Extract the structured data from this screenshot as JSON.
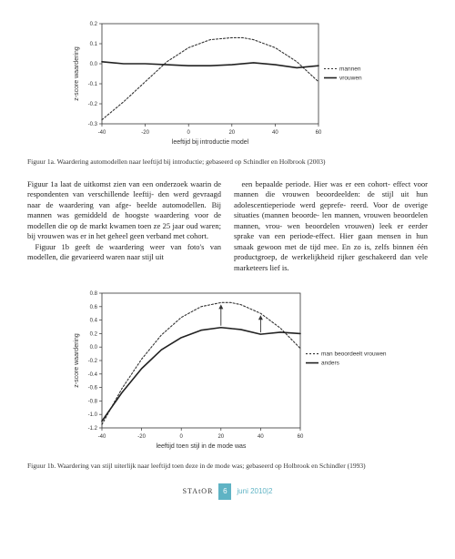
{
  "chart1": {
    "type": "line",
    "title": "",
    "xlabel": "leeftijd bij introductie model",
    "ylabel": "z-score waardering",
    "xlim": [
      -40,
      60
    ],
    "ylim": [
      -0.3,
      0.2
    ],
    "xtick_step": 20,
    "ytick_step": 0.1,
    "label_fontsize": 7,
    "tick_fontsize": 6,
    "background_color": "#ffffff",
    "axis_color": "#333333",
    "grid_on": false,
    "legend_position": "right",
    "series": [
      {
        "name": "mannen",
        "legend_label": "mannen",
        "color": "#333333",
        "dash": "2,2",
        "width": 1.1,
        "points": [
          {
            "x": -40,
            "y": -0.28
          },
          {
            "x": -30,
            "y": -0.19
          },
          {
            "x": -20,
            "y": -0.09
          },
          {
            "x": -10,
            "y": 0.01
          },
          {
            "x": 0,
            "y": 0.08
          },
          {
            "x": 10,
            "y": 0.12
          },
          {
            "x": 20,
            "y": 0.13
          },
          {
            "x": 25,
            "y": 0.13
          },
          {
            "x": 30,
            "y": 0.12
          },
          {
            "x": 40,
            "y": 0.08
          },
          {
            "x": 50,
            "y": 0.01
          },
          {
            "x": 60,
            "y": -0.09
          }
        ]
      },
      {
        "name": "vrouwen",
        "legend_label": "vrouwen",
        "color": "#222222",
        "dash": "none",
        "width": 1.6,
        "points": [
          {
            "x": -40,
            "y": 0.01
          },
          {
            "x": -30,
            "y": 0.0
          },
          {
            "x": -20,
            "y": 0.0
          },
          {
            "x": -10,
            "y": -0.005
          },
          {
            "x": 0,
            "y": -0.01
          },
          {
            "x": 10,
            "y": -0.01
          },
          {
            "x": 20,
            "y": -0.005
          },
          {
            "x": 30,
            "y": 0.005
          },
          {
            "x": 40,
            "y": -0.005
          },
          {
            "x": 50,
            "y": -0.02
          },
          {
            "x": 60,
            "y": -0.01
          }
        ]
      }
    ]
  },
  "caption1": "Figuur 1a. Waardering automodellen naar leeftijd bij introductie; gebaseerd op Schindler en Holbrook (2003)",
  "paragraph1": "Figuur 1a laat de uitkomst zien van een onderzoek waarin de respondenten van verschillende leeftij- den werd gevraagd naar de waardering van afge- beelde automodellen. Bij mannen was gemiddeld de hoogste waardering voor de modellen die op de markt kwamen toen ze 25 jaar oud waren; bij vrouwen was er in het geheel geen verband met cohort.",
  "paragraph2": "Figuur 1b geeft de waardering weer van foto's van modellen, die gevarieerd waren naar stijl uit",
  "paragraph3": "een bepaalde periode. Hier was er een cohort- effect voor mannen die vrouwen beoordeelden: de stijl uit hun adolescentieperiode werd geprefe- reerd. Voor de overige situaties (mannen beoorde- len mannen, vrouwen beoordelen mannen, vrou- wen beoordelen vrouwen) leek er eerder sprake van een periode-effect. Hier gaan mensen in hun smaak gewoon met de tijd mee. En zo is, zelfs binnen één productgroep, de werkelijkheid rijker geschakeerd dan vele marketeers lief is.",
  "chart2": {
    "type": "line",
    "title": "",
    "xlabel": "leeftijd toen stijl in de mode was",
    "ylabel": "z-score waardering",
    "xlim": [
      -40,
      60
    ],
    "ylim": [
      -1.2,
      0.8
    ],
    "xtick_step": 20,
    "ytick_step": 0.2,
    "label_fontsize": 7,
    "tick_fontsize": 6,
    "background_color": "#ffffff",
    "axis_color": "#333333",
    "grid_on": false,
    "legend_position": "right",
    "series": [
      {
        "name": "man-beoordeelt-vrouwen",
        "legend_label": "man beoordeelt vrouwen",
        "color": "#333333",
        "dash": "2,2",
        "width": 1.1,
        "points": [
          {
            "x": -40,
            "y": -1.15
          },
          {
            "x": -30,
            "y": -0.62
          },
          {
            "x": -20,
            "y": -0.18
          },
          {
            "x": -10,
            "y": 0.18
          },
          {
            "x": 0,
            "y": 0.44
          },
          {
            "x": 10,
            "y": 0.6
          },
          {
            "x": 20,
            "y": 0.66
          },
          {
            "x": 25,
            "y": 0.66
          },
          {
            "x": 30,
            "y": 0.63
          },
          {
            "x": 40,
            "y": 0.5
          },
          {
            "x": 50,
            "y": 0.28
          },
          {
            "x": 60,
            "y": -0.02
          }
        ]
      },
      {
        "name": "anders",
        "legend_label": "anders",
        "color": "#222222",
        "dash": "none",
        "width": 1.6,
        "points": [
          {
            "x": -40,
            "y": -1.1
          },
          {
            "x": -30,
            "y": -0.68
          },
          {
            "x": -20,
            "y": -0.32
          },
          {
            "x": -10,
            "y": -0.04
          },
          {
            "x": 0,
            "y": 0.14
          },
          {
            "x": 10,
            "y": 0.25
          },
          {
            "x": 20,
            "y": 0.29
          },
          {
            "x": 30,
            "y": 0.26
          },
          {
            "x": 40,
            "y": 0.19
          },
          {
            "x": 50,
            "y": 0.22
          },
          {
            "x": 60,
            "y": 0.2
          }
        ]
      }
    ],
    "arrows": [
      {
        "x": 20,
        "from_series": 1,
        "to_series": 0,
        "color": "#333333"
      },
      {
        "x": 40,
        "from_series": 1,
        "to_series": 0,
        "color": "#333333"
      }
    ]
  },
  "caption2": "Figuur 1b. Waardering van stijl uiterlijk naar leeftijd toen deze in de mode was; gebaseerd op Holbrook en Schindler (1993)",
  "footer": {
    "brand": "STA️tOR",
    "page": "6",
    "issue": "juni 2010|2",
    "accent_color": "#5fb3c4"
  }
}
